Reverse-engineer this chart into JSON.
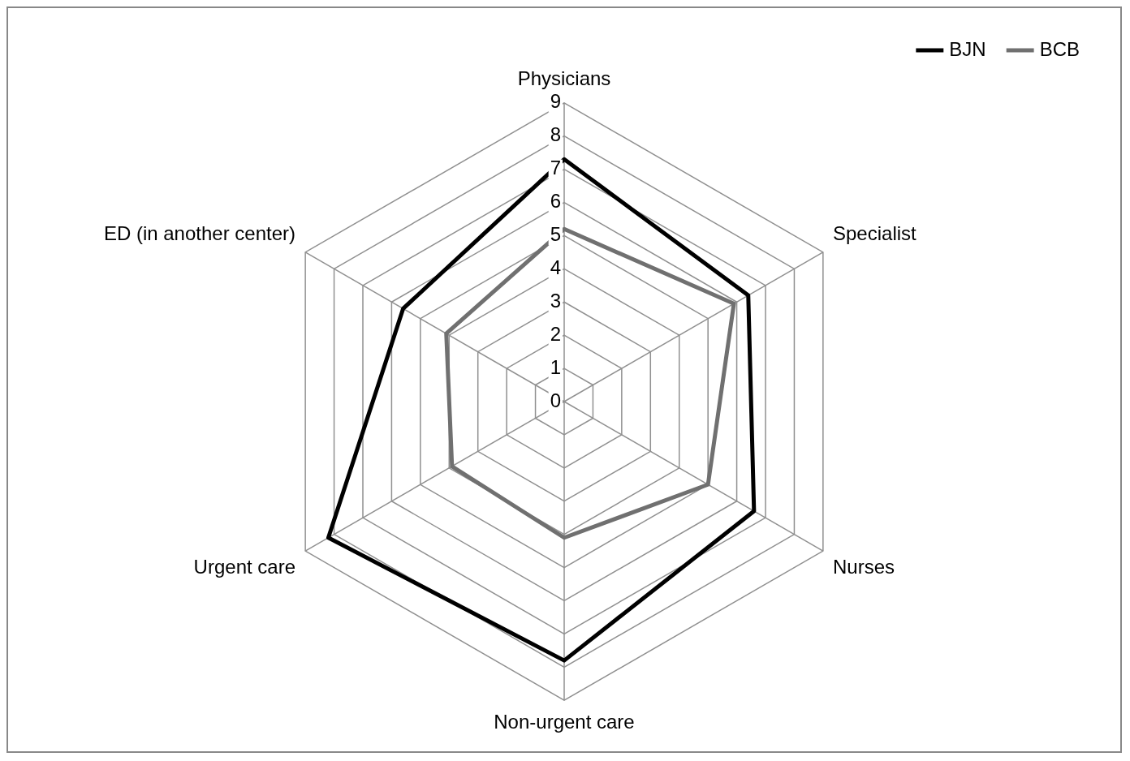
{
  "chart_data": {
    "type": "radar",
    "categories": [
      "Physicians",
      "Specialist",
      "Nurses",
      "Non-urgent care",
      "Urgent care",
      "ED (in another center)"
    ],
    "series": [
      {
        "name": "BJN",
        "color": "#000000",
        "values": [
          7.3,
          6.4,
          6.6,
          7.8,
          8.2,
          5.6
        ]
      },
      {
        "name": "BCB",
        "color": "#707070",
        "values": [
          5.2,
          5.9,
          5.0,
          4.1,
          3.9,
          4.1
        ]
      }
    ],
    "ylim": [
      0,
      9
    ],
    "yticks": [
      0,
      1,
      2,
      3,
      4,
      5,
      6,
      7,
      8,
      9
    ],
    "grid": true,
    "legend": "top right",
    "marker": "none"
  }
}
